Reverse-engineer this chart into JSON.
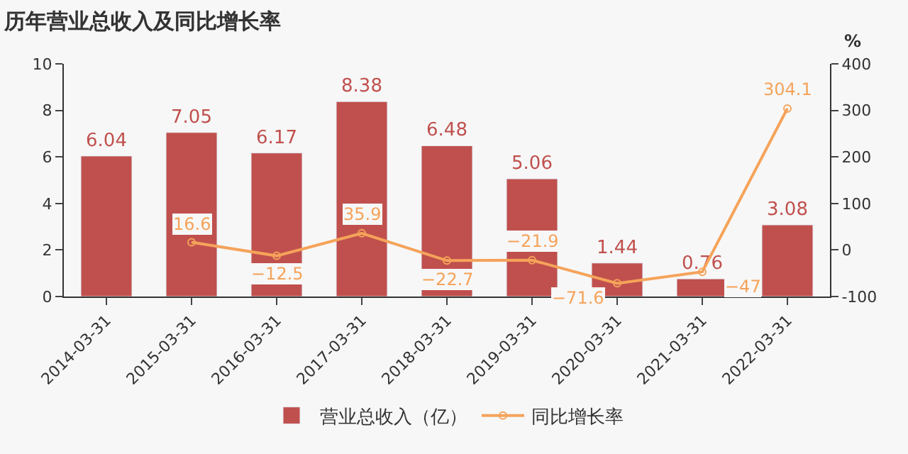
{
  "chart_data": {
    "type": "bar",
    "title": "历年营业总收入及同比增长率",
    "y2label": "%",
    "categories": [
      "2014-03-31",
      "2015-03-31",
      "2016-03-31",
      "2017-03-31",
      "2018-03-31",
      "2019-03-31",
      "2020-03-31",
      "2021-03-31",
      "2022-03-31"
    ],
    "series": [
      {
        "name": "营业总收入（亿）",
        "color": "#c0504d",
        "values": [
          6.04,
          7.05,
          6.17,
          8.38,
          6.48,
          5.06,
          1.44,
          0.76,
          3.08
        ],
        "data_labels": true
      },
      {
        "name": "同比增长率",
        "type": "line",
        "axis": "y2",
        "color": "#f5a35a",
        "marker": "circle",
        "values": [
          null,
          16.6,
          -12.5,
          35.9,
          -22.7,
          -21.9,
          -71.6,
          -47,
          304.1
        ],
        "value_labels": [
          null,
          "16.6",
          "−12.5",
          "35.9",
          "−22.7",
          "−21.9",
          "−71.6",
          "−47",
          "304.1"
        ]
      }
    ],
    "ylim": [
      0,
      10
    ],
    "yticks": [
      0,
      2,
      4,
      6,
      8,
      10
    ],
    "y2lim": [
      -100,
      400
    ],
    "y2ticks": [
      -100,
      0,
      100,
      200,
      300,
      400
    ],
    "grid": false,
    "legend": "bottom"
  }
}
